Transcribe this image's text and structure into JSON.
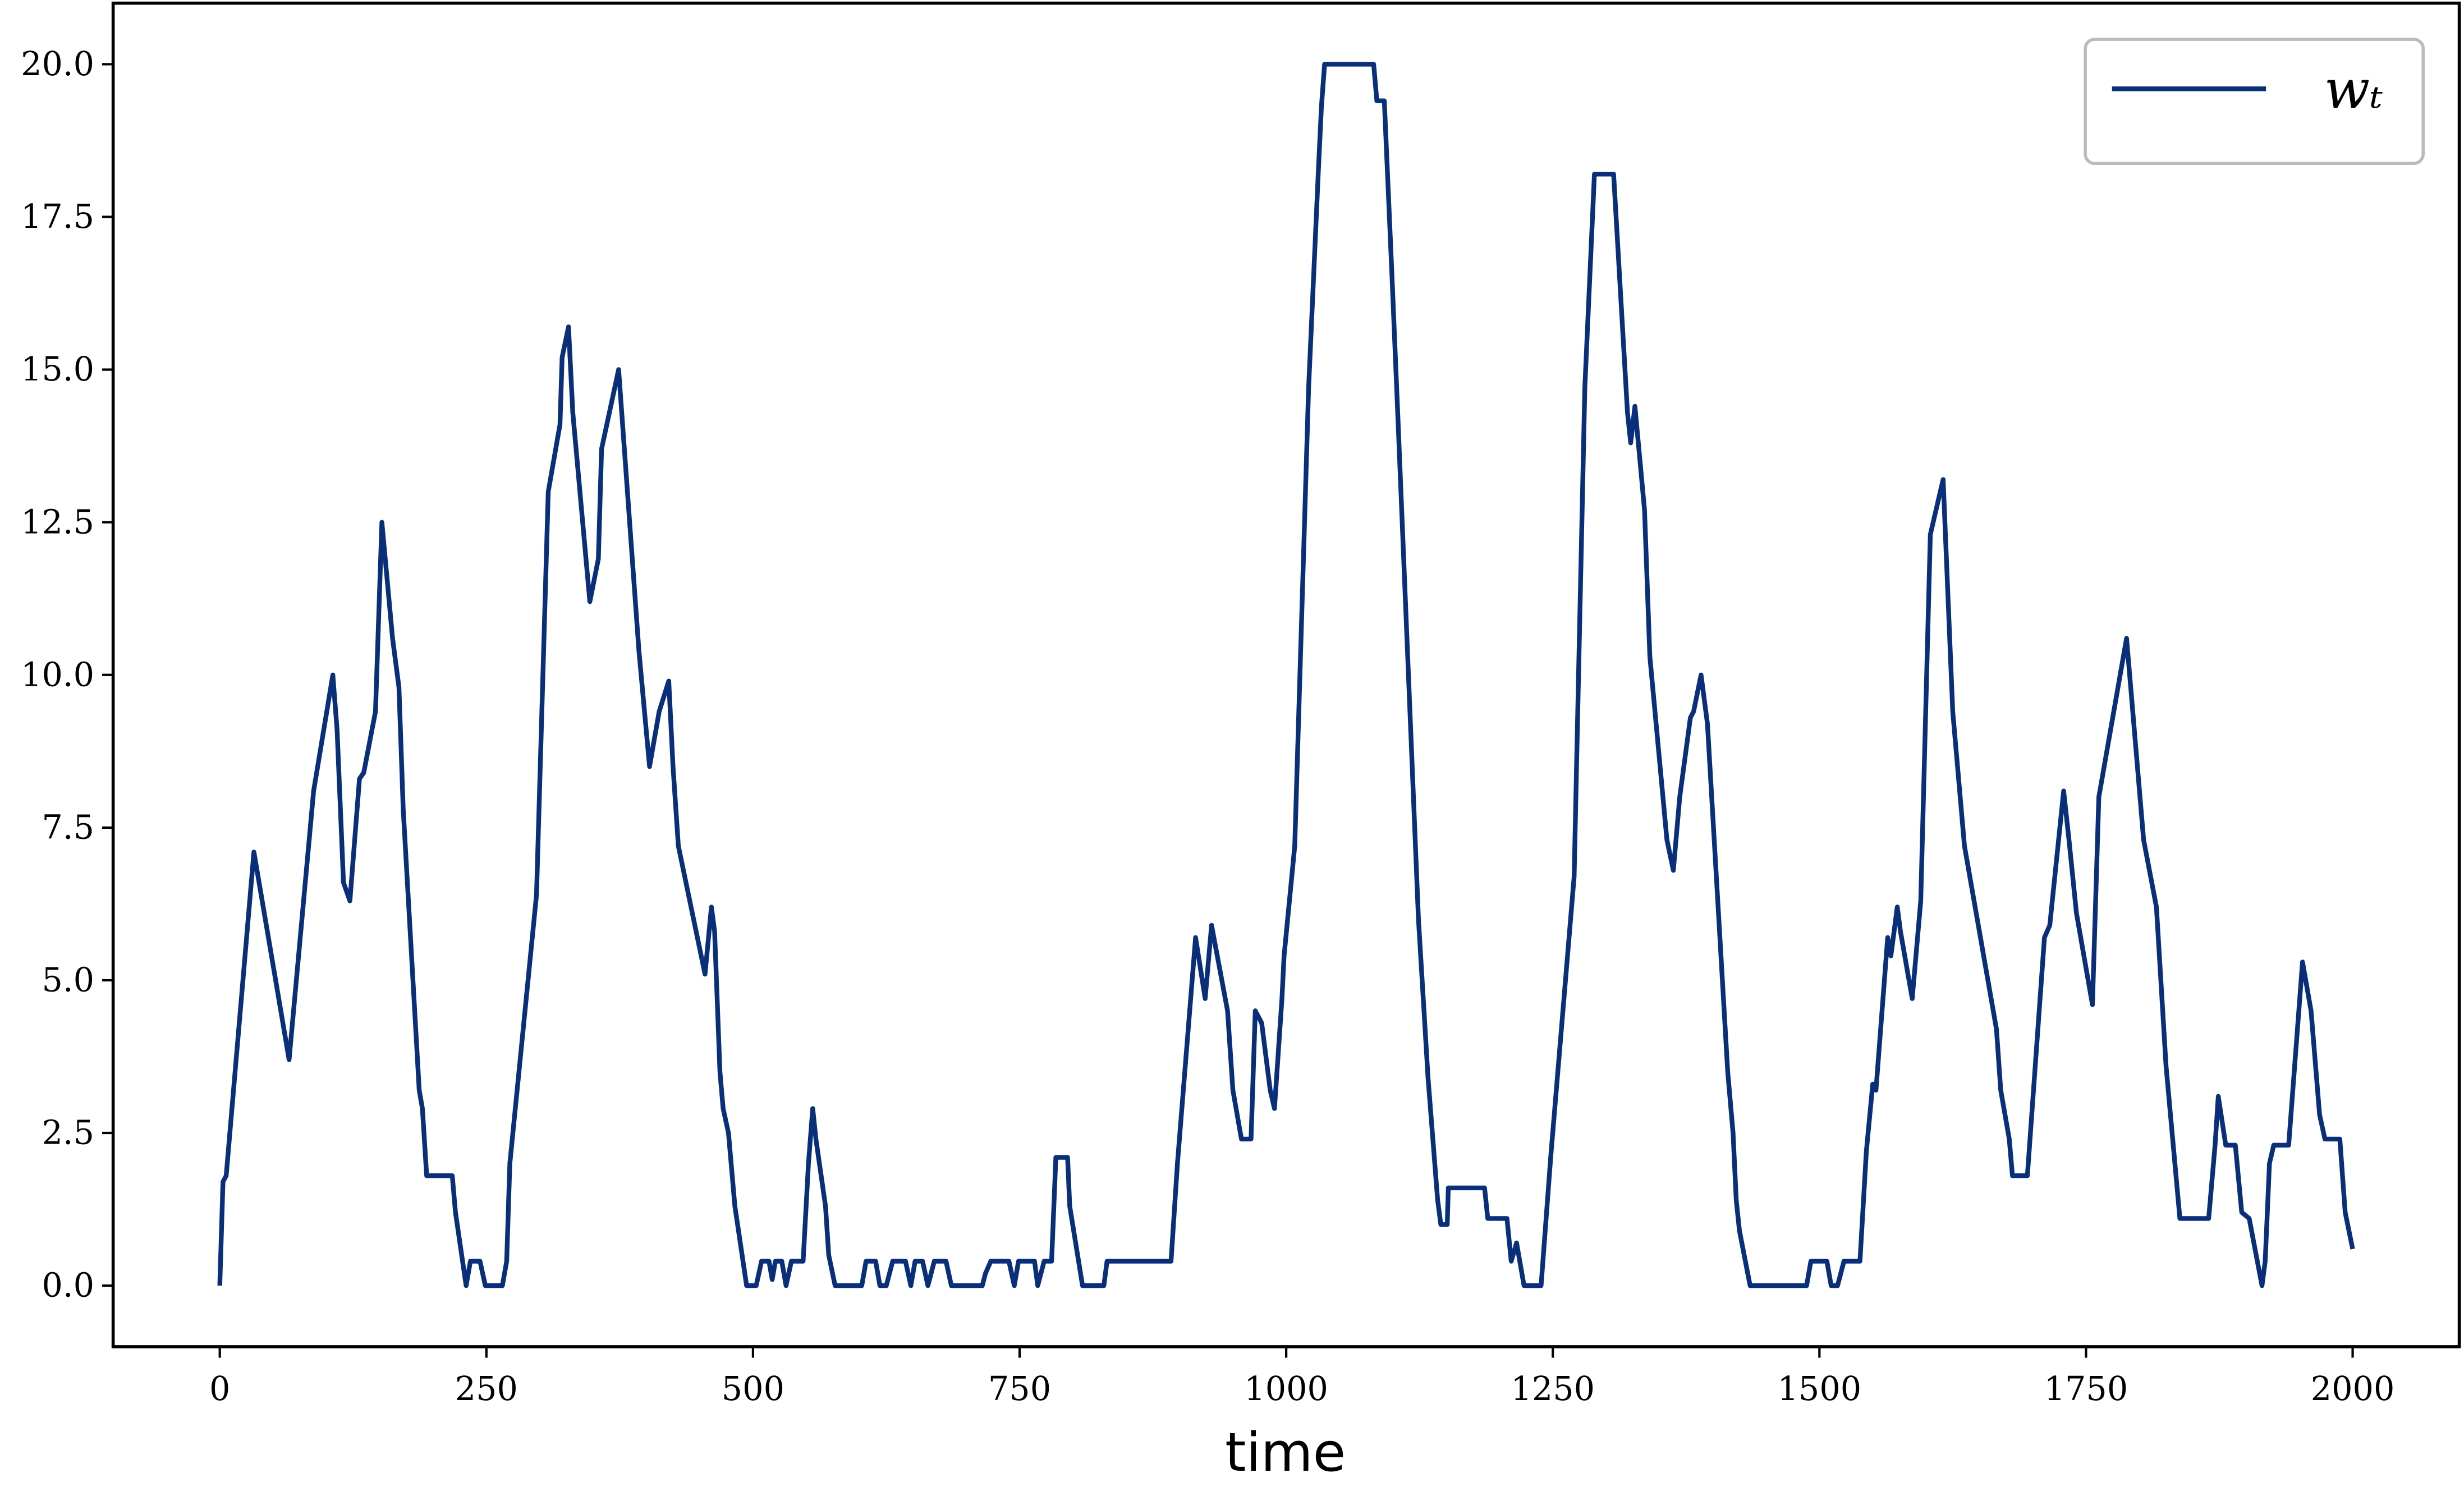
{
  "chart_data": {
    "type": "line",
    "x_label": "time",
    "xlim": [
      -100,
      2100
    ],
    "ylim": [
      -1,
      21
    ],
    "xticks": [
      0,
      250,
      500,
      750,
      1000,
      1250,
      1500,
      1750,
      2000
    ],
    "yticks": [
      {
        "value": 0,
        "label": "0.0"
      },
      2.5,
      {
        "value": 5,
        "label": "5.0"
      },
      7.5,
      {
        "value": 10,
        "label": "10.0"
      },
      12.5,
      {
        "value": 15,
        "label": "15.0"
      },
      17.5,
      {
        "value": 20,
        "label": "20.0"
      }
    ],
    "grid": false,
    "legend": "upper right",
    "series": [
      {
        "name": "wₜ",
        "color": "#0a2f7a",
        "x": [
          0,
          3,
          6,
          32,
          65,
          88,
          106,
          110,
          116,
          122,
          131,
          135,
          146,
          152,
          162,
          168,
          172,
          187,
          190,
          194,
          218,
          221,
          231,
          235,
          244,
          249,
          265,
          269,
          272,
          297,
          308,
          319,
          321,
          327,
          331,
          347,
          355,
          358,
          374,
          393,
          403,
          412,
          421,
          425,
          430,
          455,
          461,
          464,
          469,
          472,
          477,
          483,
          494,
          503,
          508,
          515,
          518,
          521,
          527,
          531,
          536,
          547,
          552,
          556,
          559,
          568,
          571,
          577,
          602,
          606,
          615,
          619,
          625,
          631,
          643,
          648,
          652,
          659,
          664,
          670,
          681,
          686,
          715,
          718,
          723,
          740,
          745,
          749,
          764,
          767,
          773,
          780,
          784,
          795,
          797,
          809,
          829,
          832,
          892,
          898,
          915,
          924,
          930,
          945,
          950,
          958,
          967,
          971,
          977,
          985,
          989,
          996,
          998,
          1008,
          1021,
          1030,
          1033,
          1036,
          1082,
          1085,
          1092,
          1099,
          1105,
          1124,
          1133,
          1142,
          1145,
          1151,
          1152,
          1186,
          1189,
          1207,
          1211,
          1216,
          1220,
          1223,
          1239,
          1248,
          1270,
          1280,
          1289,
          1307,
          1320,
          1323,
          1327,
          1336,
          1341,
          1357,
          1363,
          1369,
          1379,
          1382,
          1389,
          1395,
          1401,
          1414,
          1419,
          1422,
          1425,
          1435,
          1488,
          1492,
          1507,
          1511,
          1517,
          1523,
          1538,
          1544,
          1550,
          1553,
          1564,
          1567,
          1573,
          1576,
          1587,
          1595,
          1604,
          1616,
          1625,
          1636,
          1666,
          1670,
          1678,
          1681,
          1695,
          1711,
          1716,
          1729,
          1734,
          1741,
          1756,
          1762,
          1788,
          1804,
          1816,
          1825,
          1838,
          1865,
          1871,
          1874,
          1881,
          1890,
          1896,
          1903,
          1915,
          1918,
          1922,
          1926,
          1940,
          1953,
          1961,
          1969,
          1974,
          1988,
          1993,
          2000
        ],
        "values": [
          0,
          1.7,
          1.8,
          7.1,
          3.7,
          8.1,
          10.0,
          9.1,
          6.6,
          6.3,
          8.3,
          8.4,
          9.4,
          12.5,
          10.6,
          9.8,
          7.8,
          3.2,
          2.9,
          1.8,
          1.8,
          1.2,
          0,
          0.4,
          0.4,
          0,
          0,
          0.4,
          2.0,
          6.4,
          13.0,
          14.1,
          15.2,
          15.7,
          14.3,
          11.2,
          11.9,
          13.7,
          15.0,
          10.4,
          8.5,
          9.4,
          9.9,
          8.5,
          7.2,
          5.1,
          6.2,
          5.8,
          3.5,
          2.9,
          2.5,
          1.3,
          0,
          0,
          0.4,
          0.4,
          0.1,
          0.4,
          0.4,
          0,
          0.4,
          0.4,
          2.0,
          2.9,
          2.4,
          1.3,
          0.5,
          0,
          0,
          0.4,
          0.4,
          0,
          0,
          0.4,
          0.4,
          0,
          0.4,
          0.4,
          0,
          0.4,
          0.4,
          0,
          0,
          0.2,
          0.4,
          0.4,
          0,
          0.4,
          0.4,
          0,
          0.4,
          0.4,
          2.1,
          2.1,
          1.3,
          0,
          0,
          0.4,
          0.4,
          2.0,
          5.7,
          4.7,
          5.9,
          4.5,
          3.2,
          2.4,
          2.4,
          4.5,
          4.3,
          3.2,
          2.9,
          4.7,
          5.4,
          7.2,
          14.7,
          18.2,
          19.3,
          20.0,
          20.0,
          19.4,
          19.4,
          16.6,
          14.1,
          6.0,
          3.4,
          1.4,
          1.0,
          1.0,
          1.6,
          1.6,
          1.1,
          1.1,
          0.4,
          0.7,
          0.3,
          0,
          0,
          2.1,
          6.7,
          14.7,
          18.2,
          18.2,
          14.3,
          13.8,
          14.4,
          12.7,
          10.3,
          7.3,
          6.8,
          8.0,
          9.3,
          9.4,
          10.0,
          9.2,
          7.4,
          3.5,
          2.5,
          1.4,
          0.9,
          0,
          0,
          0.4,
          0.4,
          0,
          0,
          0.4,
          0.4,
          2.2,
          3.3,
          3.2,
          5.7,
          5.4,
          6.2,
          5.8,
          4.7,
          6.3,
          12.3,
          13.2,
          9.4,
          7.2,
          4.2,
          3.2,
          2.4,
          1.8,
          1.8,
          5.7,
          5.9,
          8.1,
          7.3,
          6.1,
          4.6,
          8.0,
          10.6,
          7.3,
          6.2,
          3.6,
          1.1,
          1.1,
          2.3,
          3.1,
          2.3,
          2.3,
          1.2,
          1.1,
          0,
          0.4,
          2.0,
          2.3,
          2.3,
          5.3,
          4.5,
          2.8,
          2.4,
          2.4,
          1.2,
          0.6
        ]
      }
    ]
  }
}
